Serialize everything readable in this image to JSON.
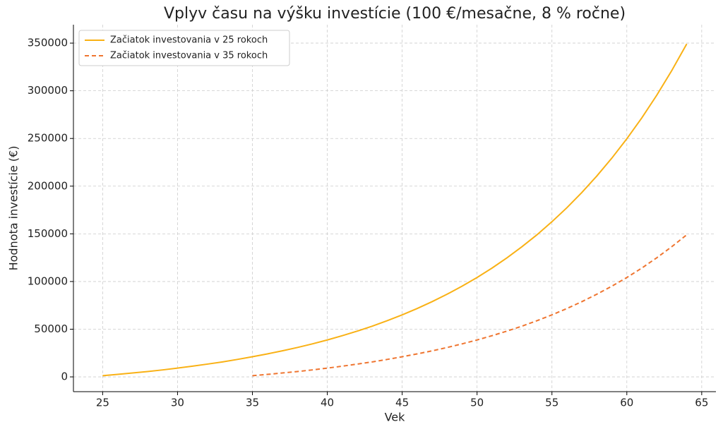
{
  "chart_data": {
    "type": "line",
    "title": "Vplyv času na výšku investície (100 €/mesačne, 8 % ročne)",
    "xlabel": "Vek",
    "ylabel": "Hodnota investície (€)",
    "x": [
      25,
      26,
      27,
      28,
      29,
      30,
      31,
      32,
      33,
      34,
      35,
      36,
      37,
      38,
      39,
      40,
      41,
      42,
      43,
      44,
      45,
      46,
      47,
      48,
      49,
      50,
      51,
      52,
      53,
      54,
      55,
      56,
      57,
      58,
      59,
      60,
      61,
      62,
      63,
      64
    ],
    "series": [
      {
        "name": "Začiatok investovania v 25 rokoch",
        "color": "#f9b115",
        "linestyle": "solid",
        "values": [
          1200,
          2600,
          4100,
          5600,
          7300,
          9200,
          11200,
          13400,
          15700,
          18300,
          21100,
          24100,
          27300,
          30800,
          34600,
          38700,
          43200,
          48000,
          53200,
          58900,
          65000,
          71700,
          78900,
          86700,
          95100,
          104200,
          114100,
          124900,
          136500,
          149000,
          162700,
          177400,
          193400,
          210700,
          229400,
          249700,
          271600,
          295400,
          321200,
          349100
        ]
      },
      {
        "name": "Začiatok investovania v 35 rokoch",
        "color": "#ef7530",
        "linestyle": "dashed",
        "values": [
          null,
          null,
          null,
          null,
          null,
          null,
          null,
          null,
          null,
          null,
          1200,
          2600,
          4100,
          5600,
          7300,
          9200,
          11200,
          13400,
          15700,
          18300,
          21100,
          24100,
          27300,
          30800,
          34600,
          38700,
          43200,
          48000,
          53200,
          58900,
          65000,
          71700,
          78900,
          86700,
          95100,
          104200,
          114100,
          124900,
          136500,
          149000
        ]
      }
    ],
    "xlim": [
      23.05,
      65.95
    ],
    "xticks": [
      25,
      30,
      35,
      40,
      45,
      50,
      55,
      60,
      65
    ],
    "ylim": [
      -15500,
      369300
    ],
    "yticks": [
      0,
      50000,
      100000,
      150000,
      200000,
      250000,
      300000,
      350000
    ],
    "grid": true,
    "legend": "upper left"
  }
}
